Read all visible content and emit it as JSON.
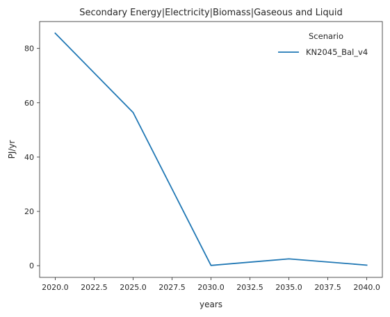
{
  "chart_data": {
    "type": "line",
    "title": "Secondary Energy|Electricity|Biomass|Gaseous and Liquid",
    "xlabel": "years",
    "ylabel": "PJ/yr",
    "x": [
      2020,
      2025,
      2030,
      2035,
      2040
    ],
    "series": [
      {
        "name": "KN2045_Bal_v4",
        "values": [
          85.6,
          56.4,
          0.1,
          2.5,
          0.2
        ],
        "color": "#1f77b4"
      }
    ],
    "xlim": [
      2019,
      2041
    ],
    "ylim": [
      -4.3,
      89.9
    ],
    "xticks": [
      "2020.0",
      "2022.5",
      "2025.0",
      "2027.5",
      "2030.0",
      "2032.5",
      "2035.0",
      "2037.5",
      "2040.0"
    ],
    "yticks": [
      "0",
      "20",
      "40",
      "60",
      "80"
    ],
    "legend": {
      "title": "Scenario",
      "placement": "top-right"
    },
    "grid": false
  }
}
